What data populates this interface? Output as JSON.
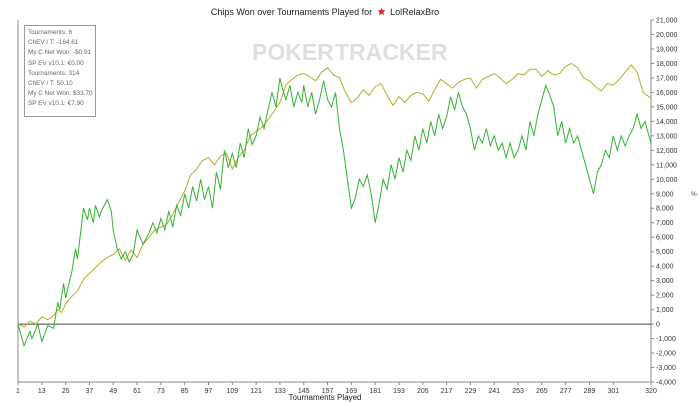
{
  "chart_data": {
    "type": "line",
    "title_prefix": "Chips Won over Tournaments Played for",
    "player": "LolRelaxBro",
    "xlabel": "Tournaments Played",
    "ylabel_unit": "%",
    "watermark": {
      "left": "POKER",
      "right": "TRACKER"
    },
    "xlim": [
      1,
      320
    ],
    "ylim": [
      -4000,
      21000
    ],
    "x_ticks": [
      1,
      13,
      25,
      37,
      49,
      61,
      73,
      85,
      97,
      109,
      121,
      133,
      145,
      157,
      169,
      181,
      193,
      205,
      217,
      229,
      241,
      253,
      265,
      277,
      289,
      301,
      320
    ],
    "y_ticks": [
      -4000,
      -3000,
      -2000,
      -1000,
      0,
      1000,
      2000,
      3000,
      4000,
      5000,
      6000,
      7000,
      8000,
      9000,
      10000,
      11000,
      12000,
      13000,
      14000,
      15000,
      16000,
      17000,
      18000,
      19000,
      20000,
      21000
    ],
    "y_tick_labels": [
      "-4,000",
      "-3,000",
      "-2,000",
      "-1,000",
      "0",
      "1,000",
      "2,000",
      "3,000",
      "4,000",
      "5,000",
      "6,000",
      "7,000",
      "8,000",
      "9,000",
      "10,000",
      "11,000",
      "12,000",
      "13,000",
      "14,000",
      "15,000",
      "16,000",
      "17,000",
      "18,000",
      "19,000",
      "20,000",
      "21,000"
    ],
    "grid": false,
    "legend_placement": "top-left",
    "legend": [
      "Tournaments: 6",
      "ChEV / T: -164.61",
      "My C Net Won: -$0.91",
      "SP EV v10.1: €0.00",
      "Tournaments: 314",
      "ChEV / T: 50.10",
      "My C Net Won: $33.70",
      "SP EV v10.1: €7.90"
    ],
    "colors": {
      "actual": "#33b233",
      "ev": "#b2ae2c",
      "zero_line": "#444444",
      "axis": "#888888"
    },
    "series": [
      {
        "key": "actual",
        "x": [
          1,
          4,
          7,
          8,
          11,
          13,
          16,
          19,
          21,
          22,
          24,
          25,
          27,
          28,
          30,
          31,
          34,
          36,
          37,
          39,
          40,
          42,
          43,
          46,
          48,
          49,
          51,
          53,
          55,
          57,
          59,
          61,
          64,
          67,
          69,
          71,
          73,
          75,
          77,
          79,
          81,
          83,
          85,
          87,
          89,
          91,
          93,
          95,
          97,
          99,
          101,
          103,
          105,
          107,
          109,
          111,
          113,
          115,
          117,
          119,
          121,
          123,
          125,
          127,
          129,
          131,
          133,
          134,
          136,
          138,
          140,
          142,
          144,
          145,
          147,
          149,
          151,
          153,
          155,
          157,
          159,
          161,
          163,
          165,
          167,
          169,
          171,
          173,
          175,
          177,
          179,
          181,
          183,
          185,
          187,
          189,
          191,
          193,
          195,
          197,
          199,
          201,
          203,
          205,
          207,
          209,
          211,
          213,
          215,
          217,
          219,
          221,
          223,
          225,
          227,
          229,
          231,
          233,
          235,
          237,
          239,
          241,
          243,
          245,
          247,
          249,
          251,
          253,
          255,
          257,
          259,
          261,
          263,
          265,
          267,
          269,
          271,
          273,
          275,
          277,
          279,
          281,
          283,
          285,
          287,
          289,
          291,
          293,
          295,
          297,
          299,
          301,
          303,
          305,
          307,
          309,
          311,
          313,
          315,
          317,
          320
        ],
        "y": [
          0,
          -1500,
          -500,
          -1000,
          0,
          -1200,
          -100,
          -300,
          1500,
          1000,
          2800,
          1800,
          3000,
          3500,
          5200,
          4500,
          8000,
          7200,
          8000,
          7000,
          8200,
          7400,
          7800,
          8600,
          7800,
          6500,
          5200,
          4500,
          5000,
          4300,
          4800,
          6500,
          5500,
          6300,
          7000,
          6300,
          7300,
          6500,
          7800,
          6700,
          8200,
          7500,
          9000,
          8000,
          9500,
          8500,
          10000,
          8600,
          9500,
          8000,
          10500,
          9300,
          12000,
          10800,
          11800,
          10800,
          12500,
          11500,
          13500,
          12400,
          13000,
          14300,
          13500,
          14800,
          16000,
          15000,
          17000,
          16400,
          15500,
          16500,
          15000,
          16000,
          15300,
          16500,
          15000,
          16000,
          14500,
          15500,
          16800,
          15500,
          15000,
          16000,
          13500,
          12000,
          10000,
          8000,
          8700,
          10000,
          9500,
          10300,
          9000,
          7000,
          8300,
          10000,
          9300,
          11000,
          10000,
          11500,
          10500,
          12000,
          11300,
          13000,
          12000,
          13500,
          12500,
          14000,
          13000,
          14500,
          13500,
          14300,
          15700,
          14800,
          16000,
          15000,
          14500,
          13500,
          12000,
          13000,
          12500,
          13500,
          12300,
          13000,
          12000,
          12500,
          11500,
          12500,
          11500,
          12000,
          13000,
          12000,
          14000,
          13000,
          14500,
          15500,
          16500,
          15800,
          15000,
          13000,
          14000,
          12500,
          13500,
          12500,
          13000,
          12000,
          11000,
          10000,
          9000,
          10500,
          11000,
          12000,
          11500,
          13000,
          12000,
          13000,
          12300,
          13000,
          13500,
          14500,
          13500,
          14000,
          12500
        ]
      },
      {
        "key": "ev",
        "x": [
          1,
          4,
          7,
          10,
          13,
          16,
          19,
          21,
          23,
          25,
          28,
          31,
          34,
          37,
          40,
          43,
          46,
          49,
          52,
          55,
          58,
          61,
          64,
          67,
          70,
          73,
          76,
          79,
          82,
          85,
          88,
          91,
          94,
          97,
          100,
          103,
          106,
          109,
          112,
          115,
          118,
          121,
          124,
          127,
          130,
          133,
          136,
          139,
          142,
          145,
          148,
          151,
          154,
          157,
          160,
          163,
          166,
          169,
          172,
          175,
          178,
          181,
          184,
          187,
          190,
          193,
          196,
          199,
          202,
          205,
          208,
          211,
          214,
          217,
          220,
          223,
          226,
          229,
          232,
          235,
          238,
          241,
          244,
          247,
          250,
          253,
          256,
          259,
          262,
          265,
          268,
          271,
          274,
          277,
          280,
          283,
          286,
          289,
          292,
          295,
          298,
          301,
          304,
          307,
          310,
          313,
          316,
          320
        ],
        "y": [
          0,
          -200,
          200,
          0,
          500,
          300,
          600,
          1000,
          800,
          1400,
          1900,
          2300,
          3100,
          3500,
          3900,
          4300,
          4600,
          4800,
          5200,
          4400,
          5100,
          4600,
          5500,
          6000,
          6500,
          6700,
          6900,
          7600,
          8400,
          9200,
          10300,
          10700,
          11300,
          11500,
          11000,
          11600,
          11800,
          10700,
          11500,
          12000,
          13000,
          13300,
          13600,
          14100,
          14700,
          15300,
          16500,
          16900,
          17200,
          17300,
          17100,
          16800,
          17400,
          17700,
          17200,
          17000,
          16000,
          15300,
          15600,
          16200,
          15800,
          16400,
          16600,
          15800,
          15100,
          15700,
          15300,
          15800,
          16000,
          15900,
          15400,
          16200,
          16900,
          16600,
          16300,
          16700,
          16900,
          17000,
          16300,
          16900,
          17100,
          17300,
          17000,
          16600,
          16900,
          17300,
          17200,
          17600,
          17600,
          17100,
          17500,
          17200,
          17300,
          17800,
          18000,
          17700,
          17000,
          16800,
          16400,
          16100,
          16600,
          16500,
          16900,
          17400,
          17900,
          17400,
          16000,
          15600
        ]
      }
    ]
  }
}
